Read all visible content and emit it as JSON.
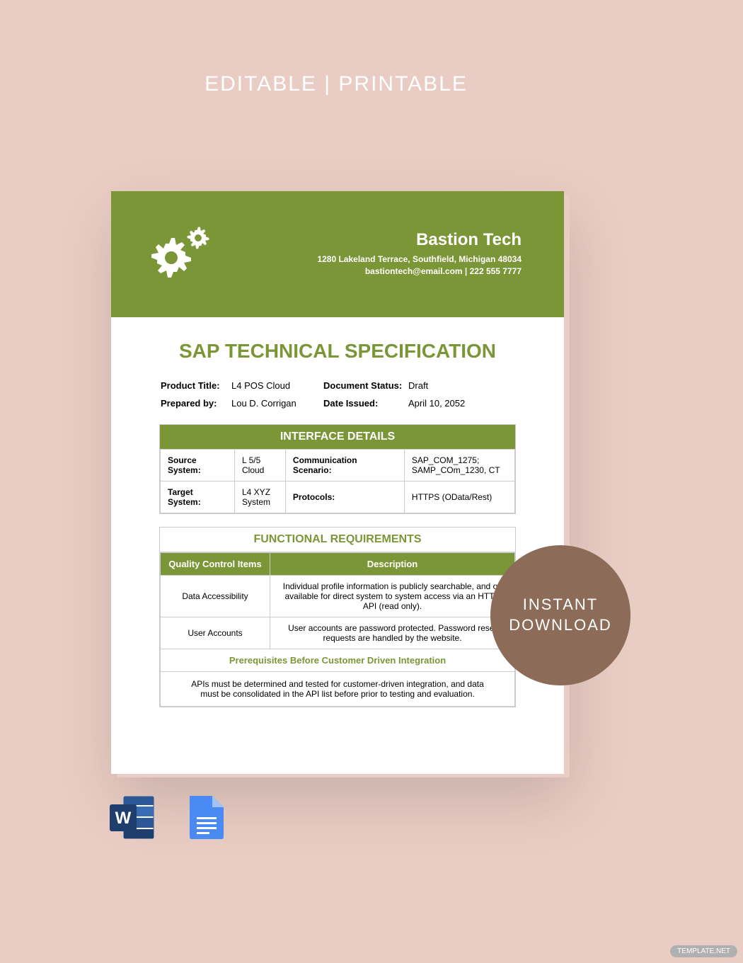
{
  "colors": {
    "page_bg": "#e9cdc4",
    "ribbon_bg": "#d9a693",
    "doc_header_bg": "#7a9637",
    "accent_green": "#7a9637",
    "title_green": "#7a9637",
    "badge_bg": "#8c6b58",
    "watermark_bg": "#b0b0b0",
    "word_blue": "#2b5797",
    "word_blue_dark": "#1e3e6e",
    "gdoc_blue": "#4a8af4"
  },
  "ribbon_text": "EDITABLE | PRINTABLE",
  "company": {
    "name": "Bastion Tech",
    "address": "1280 Lakeland Terrace, Southfield, Michigan 48034",
    "contact": "bastiontech@email.com | 222 555 7777"
  },
  "doc_title": "SAP TECHNICAL SPECIFICATION",
  "meta": {
    "product_title_label": "Product Title:",
    "product_title": "L4 POS Cloud",
    "doc_status_label": "Document Status:",
    "doc_status": "Draft",
    "prepared_by_label": "Prepared by:",
    "prepared_by": "Lou D. Corrigan",
    "date_issued_label": "Date Issued:",
    "date_issued": "April 10, 2052"
  },
  "interface": {
    "header": "INTERFACE DETAILS",
    "rows": [
      {
        "l1": "Source System:",
        "v1": "L 5/5 Cloud",
        "l2": "Communication Scenario:",
        "v2": "SAP_COM_1275; SAMP_COm_1230, CT"
      },
      {
        "l1": "Target System:",
        "v1": "L4 XYZ System",
        "l2": "Protocols:",
        "v2": "HTTPS (OData/Rest)"
      }
    ]
  },
  "functional": {
    "header": "FUNCTIONAL REQUIREMENTS",
    "col1": "Quality Control Items",
    "col2": "Description",
    "rows": [
      {
        "item": "Data Accessibility",
        "desc": "Individual profile information is publicly searchable, and os available for direct system to system access via an HTTP API (read only)."
      },
      {
        "item": "User Accounts",
        "desc": "User accounts are password protected. Password reset requests are handled by the website."
      }
    ],
    "sub_header": "Prerequisites Before Customer Driven Integration",
    "prereq": "APIs must be determined and tested for customer-driven integration, and data must be consolidated in the API list before prior to testing and evaluation."
  },
  "badge_line1": "INSTANT",
  "badge_line2": "DOWNLOAD",
  "watermark": "TEMPLATE.NET"
}
